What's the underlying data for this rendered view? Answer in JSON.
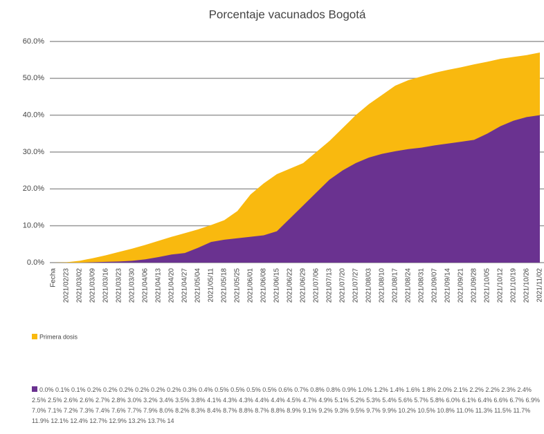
{
  "chart_data": {
    "type": "area",
    "title": "Porcentaje vacunados Bogotá",
    "categories": [
      "Fecha",
      "2021/02/23",
      "2021/03/02",
      "2021/03/09",
      "2021/03/16",
      "2021/03/23",
      "2021/03/30",
      "2021/04/06",
      "2021/04/13",
      "2021/04/20",
      "2021/04/27",
      "2021/05/04",
      "2021/05/11",
      "2021/05/18",
      "2021/05/25",
      "2021/06/01",
      "2021/06/08",
      "2021/06/15",
      "2021/06/22",
      "2021/06/29",
      "2021/07/06",
      "2021/07/13",
      "2021/07/20",
      "2021/07/27",
      "2021/08/03",
      "2021/08/10",
      "2021/08/17",
      "2021/08/24",
      "2021/08/31",
      "2021/09/07",
      "2021/09/14",
      "2021/09/21",
      "2021/09/28",
      "2021/10/05",
      "2021/10/12",
      "2021/10/19",
      "2021/10/26",
      "2021/11/02"
    ],
    "series": [
      {
        "name": "Primera dosis",
        "color": "#f9b90f",
        "values": [
          0,
          0.1,
          0.5,
          1.2,
          2.0,
          2.9,
          3.8,
          4.8,
          5.9,
          7.0,
          8.0,
          9.0,
          10.2,
          11.5,
          14.0,
          18.5,
          21.5,
          24.0,
          25.5,
          27.0,
          30.0,
          33.0,
          36.5,
          40.0,
          43.0,
          45.5,
          48.0,
          49.5,
          50.5,
          51.5,
          52.3,
          53.0,
          53.8,
          54.5,
          55.3,
          55.8,
          56.3,
          57.0
        ]
      },
      {
        "name": "0.0% 0.1% 0.1% 0.2% 0.2% 0.2% 0.2% 0.2% 0.2% 0.3% 0.4% 0.5% 0.5% 0.5% 0.5% 0.6% 0.7% 0.8% 0.8% 0.9% 1.0% 1.2% 1.4% 1.6% 1.8% 2.0% 2.1% 2.2% 2.2% 2.3% 2.4% 2.5% 2.5% 2.6% 2.6% 2.7% 2.8% 3.0% 3.2% 3.4% 3.5% 3.8% 4.1% 4.3% 4.3% 4.4% 4.4% 4.5% 4.7% 4.9% 5.1% 5.2% 5.3% 5.4% 5.6% 5.7% 5.8% 6.0% 6.1% 6.4% 6.6% 6.7% 6.9% 7.0% 7.1% 7.2% 7.3% 7.4% 7.6% 7.7% 7.9% 8.0% 8.2% 8.3% 8.4% 8.7% 8.8% 8.7% 8.8% 8.9% 9.1% 9.2% 9.3% 9.5% 9.7% 9.9% 10.2% 10.5% 10.8% 11.0% 11.3% 11.5% 11.7% 11.9% 12.1% 12.4% 12.7% 12.9% 13.2% 13.7% 14",
        "color": "#6a3290",
        "values": [
          0,
          0,
          0,
          0.1,
          0.2,
          0.3,
          0.5,
          0.9,
          1.5,
          2.2,
          2.6,
          4.0,
          5.6,
          6.2,
          6.6,
          7.0,
          7.4,
          8.5,
          12.0,
          15.5,
          19.0,
          22.5,
          25.0,
          27.0,
          28.5,
          29.5,
          30.2,
          30.8,
          31.2,
          31.8,
          32.3,
          32.8,
          33.3,
          35.0,
          37.0,
          38.5,
          39.5,
          40.0
        ]
      }
    ],
    "ylim": [
      0,
      60
    ],
    "yticks": [
      {
        "value": 0,
        "label": "0.0%"
      },
      {
        "value": 10,
        "label": "10.0%"
      },
      {
        "value": 20,
        "label": "20.0%"
      },
      {
        "value": 30,
        "label": "30.0%"
      },
      {
        "value": 40,
        "label": "40.0%"
      },
      {
        "value": 50,
        "label": "50.0%"
      },
      {
        "value": 60,
        "label": "60.0%"
      }
    ],
    "grid": true
  }
}
